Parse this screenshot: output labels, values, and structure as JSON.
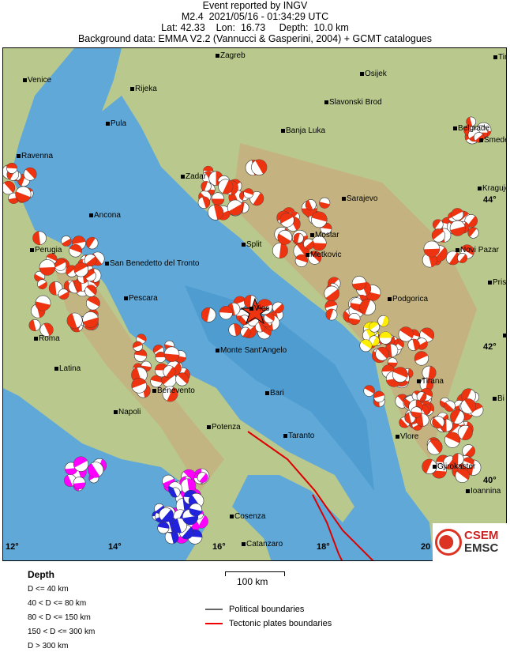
{
  "header": {
    "line1": "Event reported by INGV",
    "line2": "M2.4  2021/05/16 - 01:34:29 UTC",
    "line3": "Lat: 42.33    Lon:  16.73     Depth:  10.0 km",
    "line4": "Background data: EMMA V2.2 (Vannucci & Gasperini, 2004) + GCMT catalogues"
  },
  "map": {
    "cities": [
      "Zagreb",
      "Osijek",
      "Venice",
      "Rijeka",
      "Slavonski Brod",
      "Pula",
      "Banja Luka",
      "Belgrade",
      "Smeder",
      "Ravenna",
      "Zadar",
      "Kraguje",
      "Sarajevo",
      "Ancona",
      "Split",
      "Mostar",
      "Perugia",
      "Metkovic",
      "Novi Pazar",
      "San Benedetto del Tronto",
      "Prist",
      "Pescara",
      "Podgorica",
      "Roma",
      "Monte Sant'Angelo",
      "Latina",
      "Tirana",
      "Bari",
      "Benevento",
      "Napoli",
      "Potenza",
      "Taranto",
      "Vlore",
      "Gjirokaster",
      "Ioannina",
      "Cosenza",
      "Catanzaro",
      "Bi",
      "S",
      "Tim",
      "Vies"
    ],
    "lon_ticks": [
      "12°",
      "14°",
      "16°",
      "18°",
      "20"
    ],
    "lat_ticks": [
      "44°",
      "42°",
      "40°"
    ],
    "colors": {
      "sea": "#5fa8d8",
      "land": "#b7c98f",
      "mountain": "#c8a878",
      "mechanism_shallow": "#ee3311",
      "mechanism_40_80": "#ffee00",
      "mechanism_80_150": "#ff00ff",
      "mechanism_150_300": "#2222dd",
      "mechanism_deep": "#22aa22",
      "epicenter": "#ee3311",
      "tectonic": "#dd0000"
    },
    "epicenter_icon": "star-icon"
  },
  "logo": {
    "line1": "CSEM",
    "line2": "EMSC"
  },
  "legend": {
    "title": "Depth",
    "items": [
      "D <= 40 km",
      "40 < D <= 80 km",
      "80 < D <= 150 km",
      "150 < D <= 300 km",
      "D > 300 km"
    ],
    "scale": "100 km",
    "political": "Political boundaries",
    "tectonic": "Tectonic plates boundaries"
  }
}
